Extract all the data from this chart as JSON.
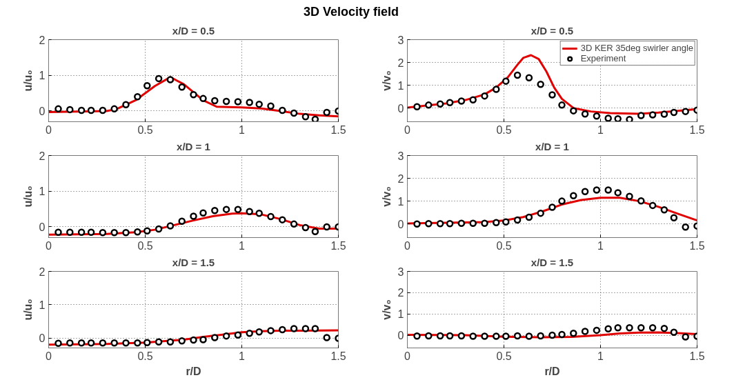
{
  "chart_data": [
    {
      "type": "line",
      "title": "x/D = 0.5",
      "ylabel": "u/u₀",
      "annotations": [
        "3D Velocity field"
      ],
      "xlim": [
        0,
        1.5
      ],
      "ylim": [
        -0.3,
        2
      ],
      "xticks": [
        0,
        0.5,
        1,
        1.5
      ],
      "yticks": [
        0,
        1,
        2
      ],
      "grid": true,
      "legend": false,
      "series": [
        {
          "color": "#e00000",
          "line_style": "solid",
          "x": [
            0,
            0.3,
            0.35,
            0.45,
            0.55,
            0.63,
            0.7,
            0.8,
            0.87,
            1.0,
            1.1,
            1.2,
            1.3,
            1.4,
            1.5
          ],
          "values": [
            -0.03,
            0.0,
            0.05,
            0.3,
            0.7,
            0.95,
            0.75,
            0.3,
            0.12,
            0.1,
            0.07,
            0.0,
            -0.08,
            -0.12,
            -0.15
          ]
        },
        {
          "type": "scatter",
          "color": "#000000",
          "marker": "circle",
          "x": [
            0.05,
            0.11,
            0.17,
            0.22,
            0.28,
            0.34,
            0.4,
            0.46,
            0.51,
            0.57,
            0.63,
            0.69,
            0.75,
            0.8,
            0.86,
            0.92,
            0.98,
            1.04,
            1.09,
            1.15,
            1.21,
            1.27,
            1.33,
            1.38,
            1.44,
            1.5
          ],
          "values": [
            0.06,
            0.04,
            0.02,
            0.02,
            0.02,
            0.06,
            0.18,
            0.4,
            0.71,
            0.91,
            0.88,
            0.67,
            0.46,
            0.35,
            0.29,
            0.27,
            0.26,
            0.24,
            0.19,
            0.14,
            0.02,
            -0.06,
            -0.16,
            -0.23,
            -0.04,
            0
          ]
        }
      ]
    },
    {
      "type": "line",
      "title": "x/D = 0.5",
      "ylabel": "v/v₀",
      "xlim": [
        0,
        1.5
      ],
      "ylim": [
        -0.6,
        3
      ],
      "xticks": [
        0,
        0.5,
        1,
        1.5
      ],
      "yticks": [
        0,
        1,
        2,
        3
      ],
      "grid": true,
      "legend": "top right",
      "series": [
        {
          "name": "3D KER 35deg swirler angle",
          "color": "#e00000",
          "line_style": "solid",
          "x": [
            0,
            0.2,
            0.3,
            0.4,
            0.46,
            0.52,
            0.57,
            0.6,
            0.64,
            0.68,
            0.72,
            0.76,
            0.8,
            0.86,
            0.95,
            1.05,
            1.2,
            1.3,
            1.4,
            1.5
          ],
          "values": [
            0.02,
            0.2,
            0.35,
            0.6,
            0.9,
            1.35,
            1.9,
            2.2,
            2.32,
            2.15,
            1.6,
            0.9,
            0.4,
            0.0,
            -0.15,
            -0.22,
            -0.25,
            -0.2,
            -0.12,
            -0.05
          ]
        },
        {
          "type": "scatter",
          "name": "Experiment",
          "color": "#000000",
          "marker": "circle",
          "x": [
            0.05,
            0.11,
            0.17,
            0.22,
            0.28,
            0.34,
            0.4,
            0.46,
            0.51,
            0.57,
            0.63,
            0.69,
            0.75,
            0.8,
            0.86,
            0.92,
            0.98,
            1.04,
            1.09,
            1.15,
            1.21,
            1.27,
            1.33,
            1.38,
            1.44,
            1.5
          ],
          "values": [
            0.06,
            0.13,
            0.18,
            0.24,
            0.31,
            0.36,
            0.53,
            0.82,
            1.18,
            1.44,
            1.33,
            1.04,
            0.58,
            0.13,
            -0.12,
            -0.26,
            -0.35,
            -0.45,
            -0.47,
            -0.5,
            -0.33,
            -0.3,
            -0.27,
            -0.19,
            -0.15,
            -0.09
          ]
        }
      ]
    },
    {
      "type": "line",
      "title": "x/D = 1",
      "ylabel": "u/u₀",
      "xlim": [
        0,
        1.5
      ],
      "ylim": [
        -0.3,
        2
      ],
      "xticks": [
        0,
        0.5,
        1,
        1.5
      ],
      "yticks": [
        0,
        1,
        2
      ],
      "grid": true,
      "legend": false,
      "series": [
        {
          "color": "#e00000",
          "line_style": "solid",
          "x": [
            0,
            0.3,
            0.45,
            0.55,
            0.65,
            0.75,
            0.85,
            0.95,
            1.0,
            1.1,
            1.2,
            1.3,
            1.4,
            1.5
          ],
          "values": [
            -0.22,
            -0.2,
            -0.15,
            -0.08,
            0.05,
            0.18,
            0.3,
            0.37,
            0.38,
            0.35,
            0.22,
            0.05,
            -0.05,
            -0.05
          ]
        },
        {
          "type": "scatter",
          "color": "#000000",
          "marker": "circle",
          "x": [
            0.05,
            0.11,
            0.17,
            0.22,
            0.28,
            0.34,
            0.4,
            0.46,
            0.51,
            0.57,
            0.63,
            0.69,
            0.75,
            0.8,
            0.86,
            0.92,
            0.98,
            1.04,
            1.09,
            1.15,
            1.21,
            1.27,
            1.33,
            1.38,
            1.44,
            1.5
          ],
          "values": [
            -0.15,
            -0.15,
            -0.15,
            -0.15,
            -0.16,
            -0.16,
            -0.16,
            -0.14,
            -0.11,
            -0.06,
            0.03,
            0.16,
            0.3,
            0.39,
            0.46,
            0.49,
            0.49,
            0.43,
            0.38,
            0.29,
            0.2,
            0.08,
            -0.02,
            -0.13,
            0,
            0
          ]
        }
      ]
    },
    {
      "type": "line",
      "title": "x/D = 1",
      "ylabel": "v/v₀",
      "xlim": [
        0,
        1.5
      ],
      "ylim": [
        -0.6,
        3
      ],
      "xticks": [
        0,
        0.5,
        1,
        1.5
      ],
      "yticks": [
        0,
        1,
        2,
        3
      ],
      "grid": true,
      "legend": false,
      "series": [
        {
          "color": "#e00000",
          "line_style": "solid",
          "x": [
            0,
            0.4,
            0.5,
            0.6,
            0.7,
            0.8,
            0.9,
            1.0,
            1.1,
            1.2,
            1.3,
            1.4,
            1.5
          ],
          "values": [
            0.02,
            0.08,
            0.15,
            0.3,
            0.55,
            0.85,
            1.05,
            1.15,
            1.15,
            1.0,
            0.75,
            0.45,
            0.15
          ]
        },
        {
          "type": "scatter",
          "color": "#000000",
          "marker": "circle",
          "x": [
            0.05,
            0.11,
            0.17,
            0.22,
            0.28,
            0.34,
            0.4,
            0.46,
            0.51,
            0.57,
            0.63,
            0.69,
            0.75,
            0.8,
            0.86,
            0.92,
            0.98,
            1.04,
            1.09,
            1.15,
            1.21,
            1.27,
            1.33,
            1.38,
            1.44,
            1.5
          ],
          "values": [
            0,
            0.01,
            0.01,
            0.01,
            0.03,
            0.03,
            0.03,
            0.06,
            0.09,
            0.17,
            0.29,
            0.47,
            0.73,
            1.0,
            1.24,
            1.42,
            1.49,
            1.49,
            1.37,
            1.21,
            1.01,
            0.81,
            0.62,
            0.27,
            -0.14,
            -0.09
          ]
        }
      ]
    },
    {
      "type": "line",
      "title": "x/D = 1.5",
      "xlabel": "r/D",
      "ylabel": "u/u₀",
      "xlim": [
        0,
        1.5
      ],
      "ylim": [
        -0.3,
        2
      ],
      "xticks": [
        0,
        0.5,
        1,
        1.5
      ],
      "yticks": [
        0,
        1,
        2
      ],
      "grid": true,
      "legend": false,
      "series": [
        {
          "color": "#e00000",
          "line_style": "solid",
          "x": [
            0,
            0.3,
            0.5,
            0.7,
            0.8,
            0.9,
            1.0,
            1.1,
            1.2,
            1.3,
            1.5
          ],
          "values": [
            -0.2,
            -0.18,
            -0.14,
            -0.05,
            0.03,
            0.1,
            0.17,
            0.2,
            0.22,
            0.22,
            0.23
          ]
        },
        {
          "type": "scatter",
          "color": "#000000",
          "marker": "circle",
          "x": [
            0.05,
            0.11,
            0.17,
            0.22,
            0.28,
            0.34,
            0.4,
            0.46,
            0.51,
            0.57,
            0.63,
            0.69,
            0.75,
            0.8,
            0.86,
            0.92,
            0.98,
            1.04,
            1.09,
            1.15,
            1.21,
            1.27,
            1.33,
            1.38,
            1.44,
            1.5
          ],
          "values": [
            -0.16,
            -0.15,
            -0.15,
            -0.15,
            -0.15,
            -0.15,
            -0.15,
            -0.15,
            -0.14,
            -0.12,
            -0.12,
            -0.09,
            -0.06,
            -0.05,
            0.01,
            0.06,
            0.09,
            0.14,
            0.18,
            0.22,
            0.25,
            0.28,
            0.28,
            0.28,
            0.01,
            -0.01
          ]
        }
      ]
    },
    {
      "type": "line",
      "title": "x/D = 1.5",
      "xlabel": "r/D",
      "ylabel": "v/v₀",
      "xlim": [
        0,
        1.5
      ],
      "ylim": [
        -0.6,
        3
      ],
      "xticks": [
        0,
        0.5,
        1,
        1.5
      ],
      "yticks": [
        0,
        1,
        2,
        3
      ],
      "grid": true,
      "legend": false,
      "series": [
        {
          "color": "#e00000",
          "line_style": "solid",
          "x": [
            0,
            0.3,
            0.5,
            0.7,
            0.85,
            1.0,
            1.1,
            1.2,
            1.3,
            1.4,
            1.5
          ],
          "values": [
            0.02,
            0.0,
            -0.07,
            -0.1,
            -0.08,
            0.0,
            0.08,
            0.12,
            0.13,
            0.1,
            0.05
          ]
        },
        {
          "type": "scatter",
          "color": "#000000",
          "marker": "circle",
          "x": [
            0.05,
            0.11,
            0.17,
            0.22,
            0.28,
            0.34,
            0.4,
            0.46,
            0.51,
            0.57,
            0.63,
            0.69,
            0.75,
            0.8,
            0.86,
            0.92,
            0.98,
            1.04,
            1.09,
            1.15,
            1.21,
            1.27,
            1.33,
            1.38,
            1.44,
            1.5
          ],
          "values": [
            -0.04,
            -0.03,
            -0.03,
            -0.03,
            -0.03,
            -0.05,
            -0.05,
            -0.05,
            -0.05,
            -0.03,
            -0.05,
            -0.03,
            0,
            0.03,
            0.09,
            0.18,
            0.23,
            0.3,
            0.35,
            0.35,
            0.35,
            0.35,
            0.32,
            0.14,
            -0.08,
            -0.05
          ]
        }
      ]
    }
  ]
}
